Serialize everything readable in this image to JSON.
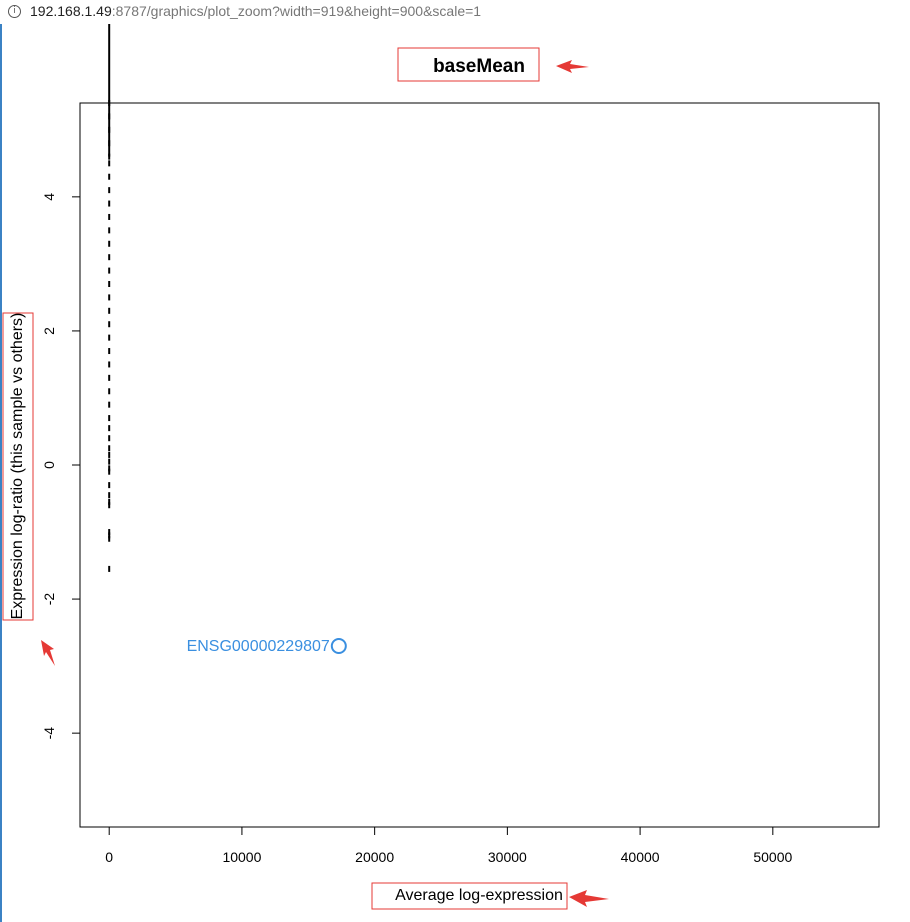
{
  "browser": {
    "url_host": "192.168.1.49",
    "url_rest": ":8787/graphics/plot_zoom?width=919&height=900&scale=1"
  },
  "colors": {
    "highlight": "#3a8fe0",
    "annotation": "#e53935"
  },
  "chart_data": {
    "type": "scatter",
    "title": "baseMean",
    "xlabel": "Average log-expression",
    "ylabel": "Expression log-ratio (this sample vs others)",
    "xlim": [
      -2200,
      58000
    ],
    "ylim": [
      -5.4,
      5.4
    ],
    "x_ticks": [
      0,
      10000,
      20000,
      30000,
      40000,
      50000
    ],
    "x_tick_labels": [
      "0",
      "10000",
      "20000",
      "30000",
      "40000",
      "50000"
    ],
    "y_ticks": [
      -4,
      -2,
      0,
      2,
      4
    ],
    "y_tick_labels": [
      "-4",
      "-2",
      "0",
      "2",
      "4"
    ],
    "grid": false,
    "points": {
      "x": [
        0,
        0,
        0,
        0,
        0,
        0,
        0,
        0,
        0,
        0,
        0,
        0,
        0,
        0,
        0,
        0,
        0,
        0,
        0,
        0,
        0,
        0,
        0,
        0,
        0,
        0,
        0,
        0,
        0,
        0,
        0,
        0,
        0,
        0,
        0,
        0,
        0,
        0,
        0,
        0
      ],
      "y": [
        5.4,
        5.2,
        5.0,
        4.8,
        4.6,
        4.5,
        4.3,
        4.1,
        3.9,
        3.7,
        3.5,
        3.3,
        3.1,
        2.9,
        2.7,
        2.5,
        2.3,
        2.1,
        1.9,
        1.7,
        1.5,
        1.3,
        1.1,
        0.9,
        0.7,
        0.55,
        0.4,
        0.25,
        0.15,
        0.05,
        -0.05,
        -0.1,
        -0.3,
        -0.45,
        -0.55,
        -0.6,
        -1.0,
        -1.05,
        -1.1,
        -1.55
      ]
    },
    "highlight": {
      "label": "ENSG00000229807",
      "x": 17300,
      "y": -2.7
    }
  }
}
